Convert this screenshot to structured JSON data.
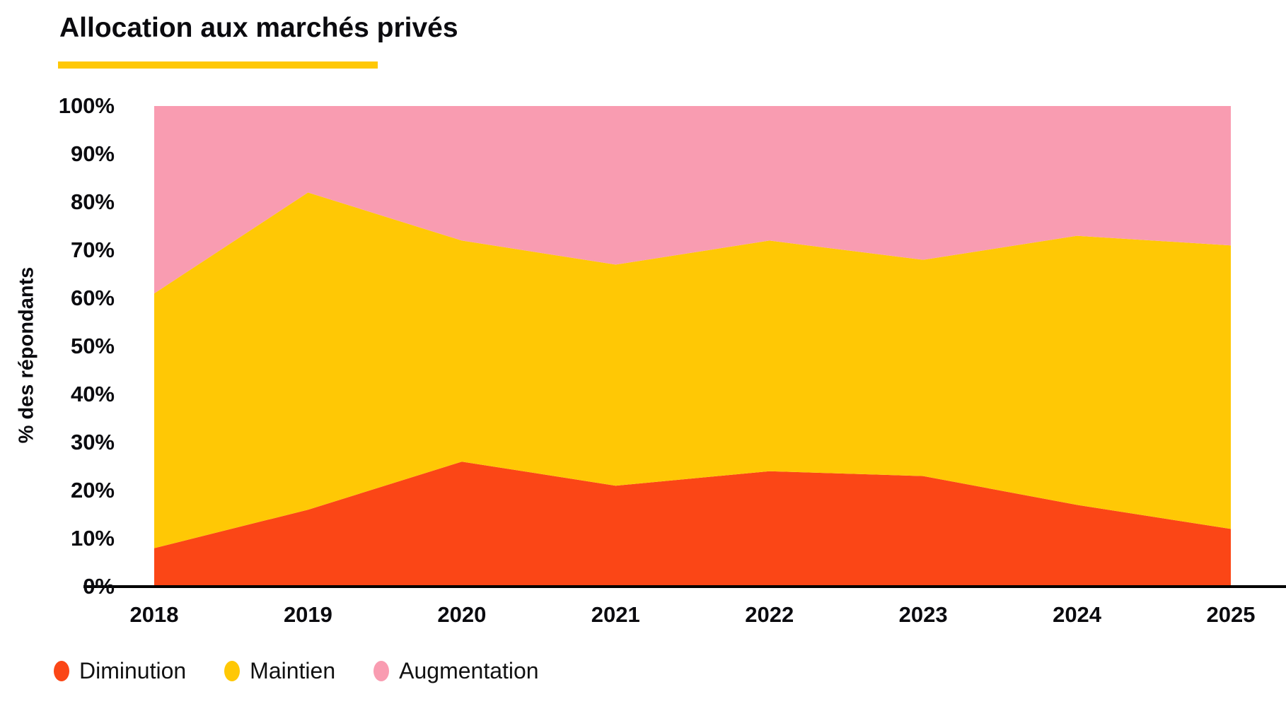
{
  "title": "Allocation aux marchés privés",
  "accent_underline_color": "#FFC805",
  "y_axis_title": "% des répondants",
  "colors": {
    "diminution": "#FB4616",
    "maintien": "#FFC805",
    "augmentation": "#F99CB1",
    "axis": "#000000",
    "text": "#0b0b0f"
  },
  "chart_data": {
    "type": "area",
    "stacked": true,
    "title": "Allocation aux marchés privés",
    "ylabel": "% des répondants",
    "xlabel": "",
    "ylim": [
      0,
      100
    ],
    "grid": false,
    "legend_position": "bottom-left",
    "categories": [
      "2018",
      "2019",
      "2020",
      "2021",
      "2022",
      "2023",
      "2024",
      "2025"
    ],
    "y_ticks": [
      "0%",
      "10%",
      "20%",
      "30%",
      "40%",
      "50%",
      "60%",
      "70%",
      "80%",
      "90%",
      "100%"
    ],
    "series": [
      {
        "name": "Diminution",
        "color_key": "diminution",
        "values": [
          8,
          16,
          26,
          21,
          24,
          23,
          17,
          12
        ]
      },
      {
        "name": "Maintien",
        "color_key": "maintien",
        "values": [
          53,
          66,
          46,
          46,
          48,
          45,
          56,
          59
        ]
      },
      {
        "name": "Augmentation",
        "color_key": "augmentation",
        "values": [
          39,
          18,
          28,
          33,
          28,
          32,
          27,
          29
        ]
      }
    ]
  },
  "legend": {
    "items": [
      {
        "label": "Diminution",
        "color_key": "diminution"
      },
      {
        "label": "Maintien",
        "color_key": "maintien"
      },
      {
        "label": "Augmentation",
        "color_key": "augmentation"
      }
    ]
  }
}
